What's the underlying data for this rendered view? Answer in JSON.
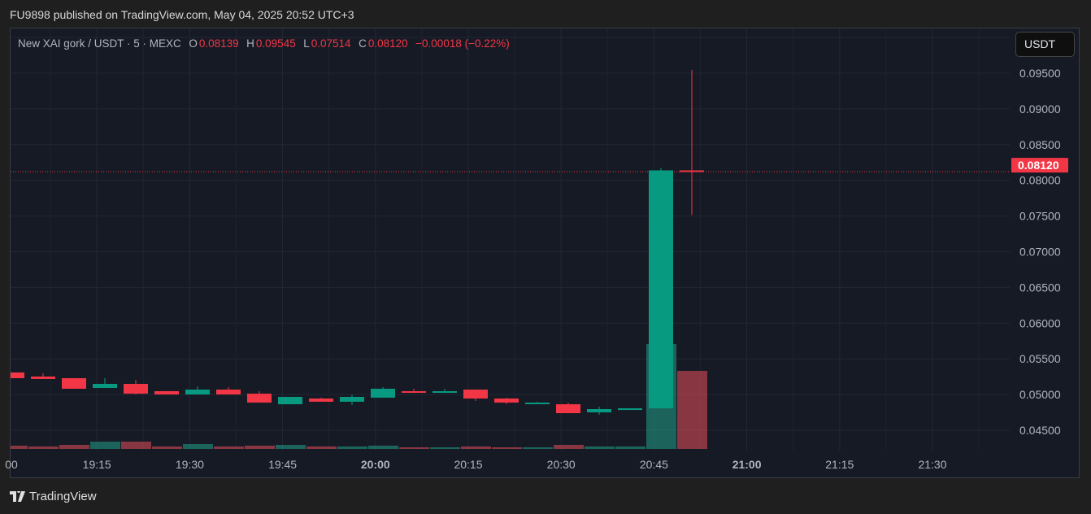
{
  "publisher_line": "FU9898 published on TradingView.com, May 04, 2025 20:52 UTC+3",
  "brand": "TradingView",
  "legend": {
    "symbol": "New XAI gork / USDT · 5 · MEXC",
    "o_label": "O",
    "o": "0.08139",
    "h_label": "H",
    "h": "0.09545",
    "l_label": "L",
    "l": "0.07514",
    "c_label": "C",
    "c": "0.08120",
    "change": "−0.00018 (−0.22%)"
  },
  "currency_button": "USDT",
  "colors": {
    "up": "#089981",
    "down": "#f23645",
    "up_volume": "#22ab94",
    "down_volume": "#f7525f",
    "background": "#161a25"
  },
  "chart_data": {
    "type": "candlestick",
    "interval": "5",
    "times": [
      "19:00",
      "19:05",
      "19:10",
      "19:15",
      "19:20",
      "19:25",
      "19:30",
      "19:35",
      "19:40",
      "19:45",
      "19:50",
      "19:55",
      "20:00",
      "20:05",
      "20:10",
      "20:15",
      "20:20",
      "20:25",
      "20:30",
      "20:35",
      "20:40",
      "20:45",
      "20:50"
    ],
    "open": [
      0.05309,
      0.05252,
      0.05229,
      0.05092,
      0.05149,
      0.05047,
      0.05001,
      0.05069,
      0.05012,
      0.04864,
      0.04944,
      0.04899,
      0.04956,
      0.05047,
      0.05024,
      0.05069,
      0.04944,
      0.04876,
      0.04864,
      0.0475,
      0.04784,
      0.04807,
      0.08139
    ],
    "high": [
      0.05309,
      0.05298,
      0.05229,
      0.05229,
      0.05206,
      0.05047,
      0.05115,
      0.05104,
      0.05047,
      0.04967,
      0.04956,
      0.05001,
      0.05104,
      0.05081,
      0.05081,
      0.05069,
      0.04956,
      0.04899,
      0.04887,
      0.0483,
      0.04807,
      0.08173,
      0.09545
    ],
    "low": [
      0.05229,
      0.05218,
      0.05081,
      0.05092,
      0.05001,
      0.05001,
      0.05001,
      0.05001,
      0.04887,
      0.04864,
      0.04899,
      0.04853,
      0.04956,
      0.05024,
      0.05024,
      0.0491,
      0.04864,
      0.04876,
      0.04739,
      0.04716,
      0.04784,
      0.04807,
      0.07514
    ],
    "close": [
      0.05229,
      0.05218,
      0.05081,
      0.05149,
      0.05012,
      0.05001,
      0.05069,
      0.05001,
      0.04887,
      0.04967,
      0.04899,
      0.04967,
      0.05081,
      0.05024,
      0.05047,
      0.04944,
      0.04887,
      0.04887,
      0.04739,
      0.04796,
      0.04807,
      0.08139,
      0.0812
    ],
    "volume_relative": [
      4,
      3,
      5,
      9,
      9,
      3,
      6,
      3,
      4,
      5,
      3,
      3,
      4,
      2,
      2,
      3,
      2,
      2,
      5,
      3,
      3,
      129,
      96
    ],
    "last_price": "0.08120",
    "y_ticks": [
      "0.09500",
      "0.09000",
      "0.08500",
      "0.08000",
      "0.07500",
      "0.07000",
      "0.06500",
      "0.06000",
      "0.05500",
      "0.05000",
      "0.04500"
    ],
    "x_ticks": [
      "00",
      "19:15",
      "19:30",
      "19:45",
      "20:00",
      "20:15",
      "20:30",
      "20:45",
      "21:00",
      "21:15",
      "21:30"
    ],
    "x_ticks_bold": [
      "20:00",
      "21:00"
    ],
    "ylim": [
      0.0424,
      0.1003
    ],
    "grid": true
  }
}
